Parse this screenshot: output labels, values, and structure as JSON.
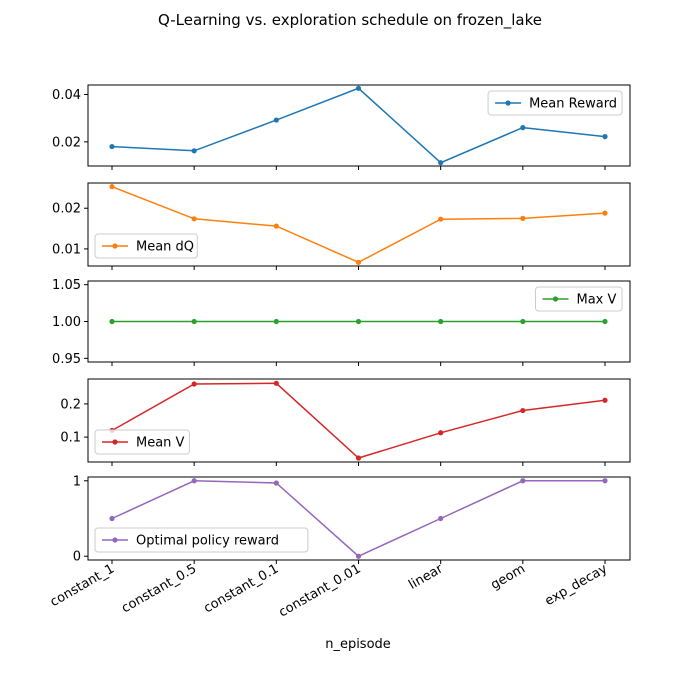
{
  "figure": {
    "title": "Q-Learning vs. exploration schedule on frozen_lake",
    "xlabel": "n_episode"
  },
  "chart_data": [
    {
      "type": "line",
      "categories": [
        "constant_1",
        "constant_0.5",
        "constant_0.1",
        "constant_0.01",
        "linear",
        "geom",
        "exp_decay"
      ],
      "series": [
        {
          "name": "Mean Reward",
          "color": "#1f77b4",
          "values": [
            0.018,
            0.0162,
            0.0292,
            0.0426,
            0.0112,
            0.026,
            0.0222
          ]
        }
      ],
      "yticks": [
        0.02,
        0.04
      ],
      "ytick_labels": [
        "0.02",
        "0.04"
      ],
      "ylim": [
        0.0098,
        0.044
      ],
      "legend": "upper-right"
    },
    {
      "type": "line",
      "categories": [
        "constant_1",
        "constant_0.5",
        "constant_0.1",
        "constant_0.01",
        "linear",
        "geom",
        "exp_decay"
      ],
      "series": [
        {
          "name": "Mean dQ",
          "color": "#ff7f0e",
          "values": [
            0.0253,
            0.0174,
            0.0156,
            0.0067,
            0.0173,
            0.0175,
            0.0188
          ]
        }
      ],
      "yticks": [
        0.01,
        0.02
      ],
      "ytick_labels": [
        "0.01",
        "0.02"
      ],
      "ylim": [
        0.0058,
        0.0262
      ],
      "legend": "lower-left"
    },
    {
      "type": "line",
      "categories": [
        "constant_1",
        "constant_0.5",
        "constant_0.1",
        "constant_0.01",
        "linear",
        "geom",
        "exp_decay"
      ],
      "series": [
        {
          "name": "Max V",
          "color": "#2ca02c",
          "values": [
            1.0,
            1.0,
            1.0,
            1.0,
            1.0,
            1.0,
            1.0
          ]
        }
      ],
      "yticks": [
        0.95,
        1.0,
        1.05
      ],
      "ytick_labels": [
        "0.95",
        "1.00",
        "1.05"
      ],
      "ylim": [
        0.945,
        1.055
      ],
      "legend": "upper-right"
    },
    {
      "type": "line",
      "categories": [
        "constant_1",
        "constant_0.5",
        "constant_0.1",
        "constant_0.01",
        "linear",
        "geom",
        "exp_decay"
      ],
      "series": [
        {
          "name": "Mean V",
          "color": "#d62728",
          "values": [
            0.12,
            0.26,
            0.262,
            0.037,
            0.113,
            0.18,
            0.211
          ]
        }
      ],
      "yticks": [
        0.1,
        0.2
      ],
      "ytick_labels": [
        "0.1",
        "0.2"
      ],
      "ylim": [
        0.025,
        0.275
      ],
      "legend": "lower-left"
    },
    {
      "type": "line",
      "categories": [
        "constant_1",
        "constant_0.5",
        "constant_0.1",
        "constant_0.01",
        "linear",
        "geom",
        "exp_decay"
      ],
      "series": [
        {
          "name": "Optimal policy reward",
          "color": "#9467bd",
          "values": [
            0.5,
            1.0,
            0.97,
            0.0,
            0.5,
            1.0,
            1.0
          ]
        }
      ],
      "yticks": [
        0,
        1
      ],
      "ytick_labels": [
        "0",
        "1"
      ],
      "ylim": [
        -0.05,
        1.05
      ],
      "legend": "lower-left"
    }
  ]
}
